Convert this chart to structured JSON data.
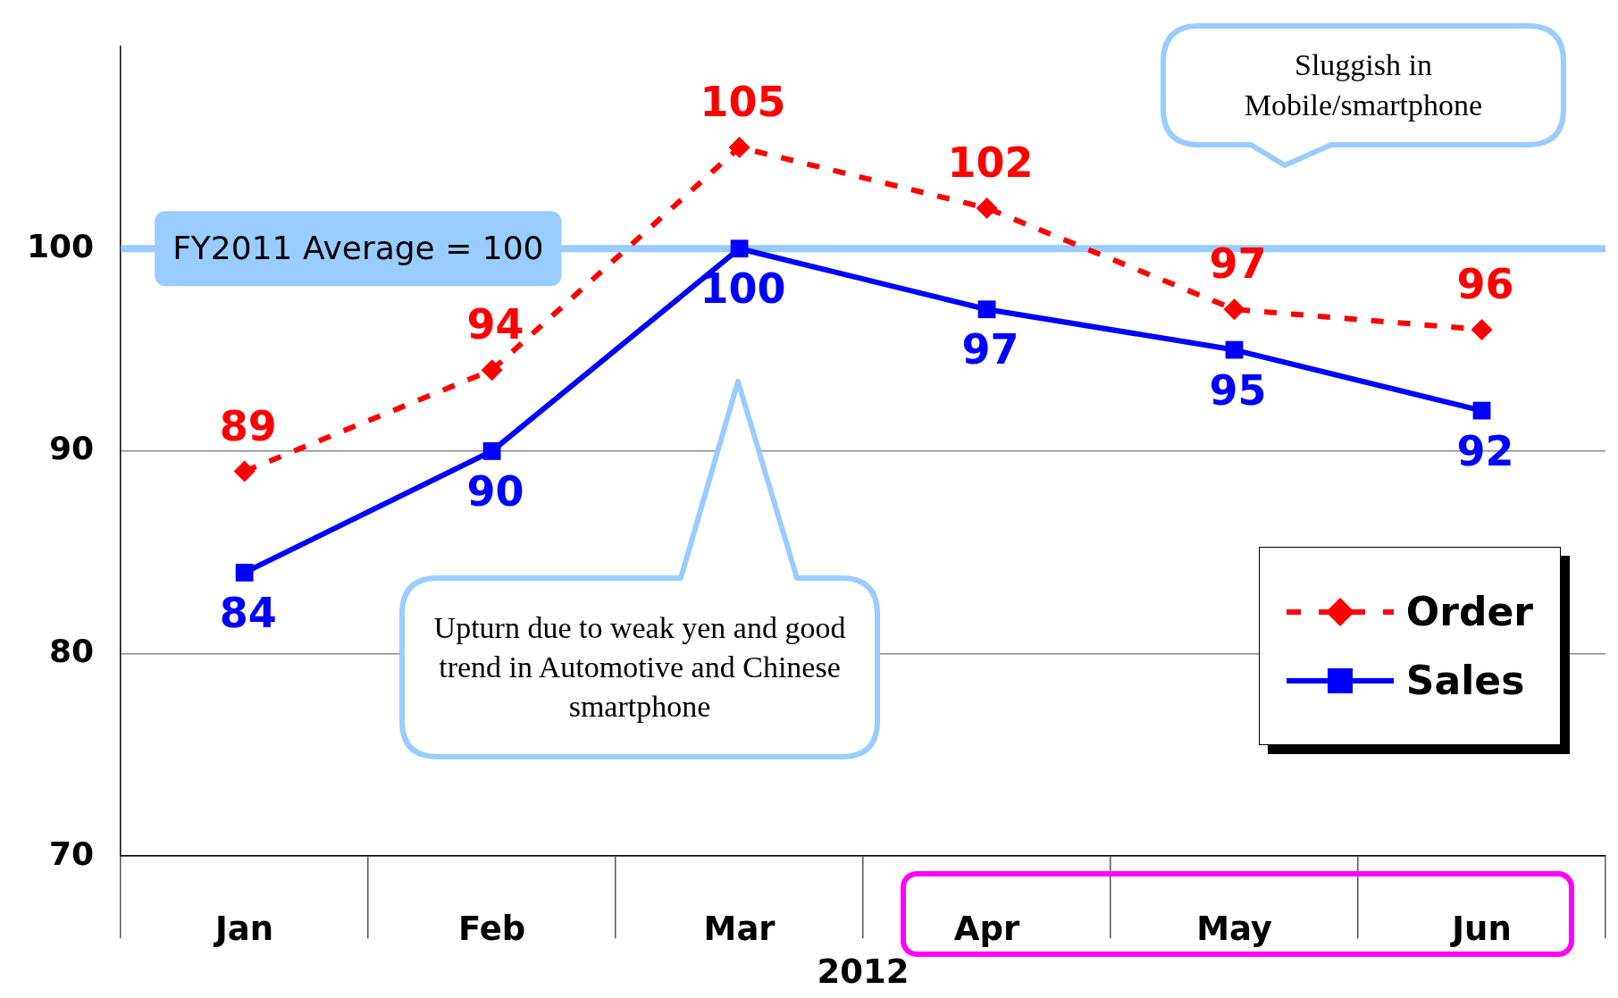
{
  "chart_data": {
    "type": "line",
    "xlabel": "2012",
    "categories": [
      "Jan",
      "Feb",
      "Mar",
      "Apr",
      "May",
      "Jun"
    ],
    "series": [
      {
        "name": "Order",
        "color": "#ff0000",
        "values": [
          89,
          94,
          105,
          102,
          97,
          96
        ],
        "marker": "diamond",
        "line_style": "dashed"
      },
      {
        "name": "Sales",
        "color": "#0000ff",
        "values": [
          84,
          90,
          100,
          97,
          95,
          92
        ],
        "marker": "square",
        "line_style": "solid"
      }
    ],
    "ylim": [
      70,
      110
    ],
    "yticks": [
      70,
      80,
      90,
      100
    ],
    "grid": "y",
    "legend": "bottom right",
    "data_labels": true,
    "ref_lines": [
      {
        "axis": "y",
        "value": 100,
        "label": "FY2011 Average = 100",
        "color": "#99ccff"
      }
    ],
    "annotations": [
      "Sluggish in Mobile/smartphone",
      "Upturn due to weak yen and good trend in Automotive and Chinese smartphone"
    ]
  }
}
